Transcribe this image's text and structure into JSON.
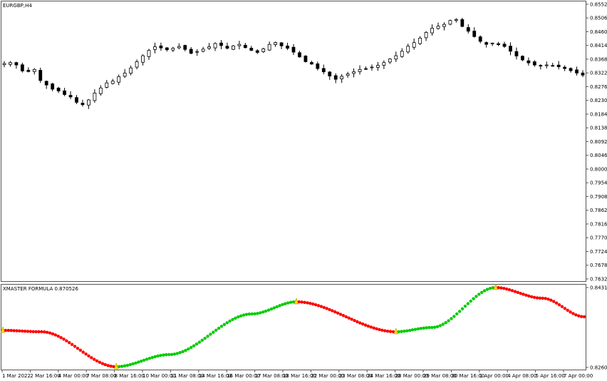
{
  "chart_data": [
    {
      "type": "candlestick",
      "title": "EURGBP,H4",
      "y_ticks": [
        "0.85525",
        "0.85065",
        "0.84605",
        "0.84145",
        "0.83685",
        "0.83225",
        "0.82765",
        "0.82305",
        "0.81845",
        "0.81385",
        "0.80925",
        "0.80465",
        "0.80005",
        "0.79545",
        "0.79085",
        "0.78625",
        "0.78165",
        "0.77705",
        "0.77245",
        "0.76785",
        "0.76325"
      ],
      "y_tick_values": [
        0.85525,
        0.85065,
        0.84605,
        0.84145,
        0.83685,
        0.83225,
        0.82765,
        0.82305,
        0.81845,
        0.81385,
        0.80925,
        0.80465,
        0.80005,
        0.79545,
        0.79085,
        0.78625,
        0.78165,
        0.77705,
        0.77245,
        0.76785,
        0.76325
      ],
      "ylim": [
        0.763,
        0.8557
      ],
      "close_path": [
        0.8354,
        0.8357,
        0.8349,
        0.8329,
        0.8327,
        0.8334,
        0.8297,
        0.8282,
        0.8268,
        0.8262,
        0.825,
        0.8242,
        0.8224,
        0.8216,
        0.8232,
        0.8255,
        0.8272,
        0.8289,
        0.8295,
        0.831,
        0.8322,
        0.8339,
        0.836,
        0.838,
        0.8398,
        0.841,
        0.8406,
        0.84,
        0.8405,
        0.8411,
        0.8401,
        0.8388,
        0.8394,
        0.8402,
        0.841,
        0.8421,
        0.8414,
        0.8405,
        0.8413,
        0.8418,
        0.8407,
        0.8398,
        0.8391,
        0.8403,
        0.8418,
        0.8424,
        0.8413,
        0.8405,
        0.8392,
        0.8376,
        0.836,
        0.8352,
        0.8337,
        0.8326,
        0.8312,
        0.8301,
        0.8311,
        0.8319,
        0.8326,
        0.8334,
        0.8336,
        0.8342,
        0.8348,
        0.8357,
        0.8369,
        0.838,
        0.8395,
        0.8412,
        0.8424,
        0.8439,
        0.8458,
        0.8472,
        0.8479,
        0.8485,
        0.8498,
        0.8501,
        0.8478,
        0.8462,
        0.8444,
        0.8428,
        0.8418,
        0.8422,
        0.8417,
        0.8411,
        0.8395,
        0.8379,
        0.8366,
        0.8356,
        0.8349,
        0.8347,
        0.8349,
        0.8347,
        0.8343,
        0.8337,
        0.833,
        0.8322,
        0.8315
      ]
    },
    {
      "type": "scatter",
      "title": "XMASTER FORMULA 0.870526",
      "y_ticks": [
        "0.843157",
        "0.826033"
      ],
      "ylim": [
        0.826033,
        0.843157
      ],
      "x_ticks": [
        "1 Mar 2022",
        "2 Mar 16:00",
        "4 Mar 00:00",
        "7 Mar 08:00",
        "8 Mar 16:00",
        "10 Mar 00:00",
        "11 Mar 08:00",
        "14 Mar 16:00",
        "16 Mar 00:00",
        "17 Mar 08:00",
        "18 Mar 16:00",
        "22 Mar 00:00",
        "23 Mar 08:00",
        "24 Mar 16:00",
        "28 Mar 00:00",
        "29 Mar 08:00",
        "30 Mar 16:00",
        "1 Apr 00:00",
        "4 Apr 08:00",
        "5 Apr 16:00",
        "7 Apr 00:00"
      ],
      "series": [
        {
          "color": "#ff0000",
          "ranges": [
            [
              0,
              40
            ],
            [
              106,
              141
            ],
            [
              178,
              210
            ]
          ]
        },
        {
          "color": "#00cc00",
          "ranges": [
            [
              41,
              105
            ],
            [
              142,
              177
            ]
          ]
        }
      ],
      "signals": [
        0,
        41,
        106,
        142,
        178
      ],
      "signal_color": "#ffd700"
    }
  ]
}
